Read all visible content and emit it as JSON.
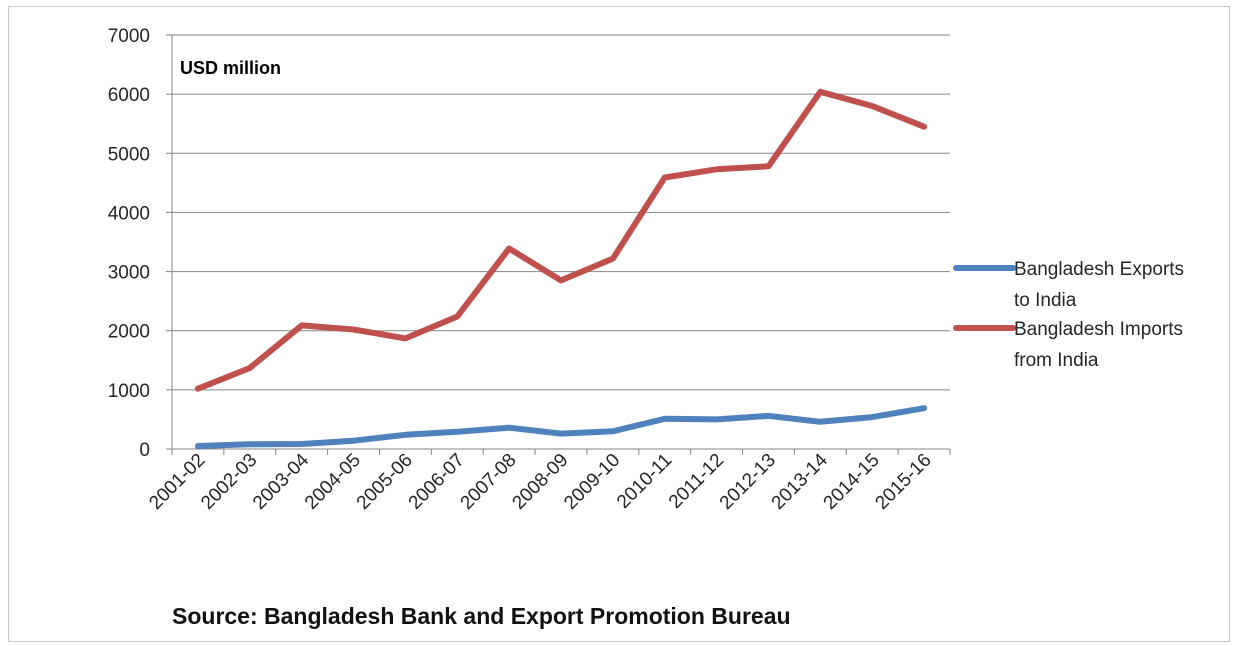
{
  "chart_data": {
    "type": "line",
    "title": "",
    "unit_label": "USD million",
    "categories": [
      "2001-02",
      "2002-03",
      "2003-04",
      "2004-05",
      "2005-06",
      "2006-07",
      "2007-08",
      "2008-09",
      "2009-10",
      "2010-11",
      "2011-12",
      "2012-13",
      "2013-14",
      "2014-15",
      "2015-16"
    ],
    "ylim": [
      0,
      7000
    ],
    "yticks": [
      0,
      1000,
      2000,
      3000,
      4000,
      5000,
      6000,
      7000
    ],
    "grid": true,
    "legend_position": "right",
    "series": [
      {
        "name_lines": [
          "Bangladesh Exports",
          "to India"
        ],
        "color": "#4f81bd",
        "values": [
          50,
          80,
          85,
          140,
          240,
          290,
          360,
          260,
          300,
          510,
          500,
          560,
          460,
          540,
          690
        ]
      },
      {
        "name_lines": [
          "Bangladesh Imports",
          "from India"
        ],
        "color": "#c0504d",
        "values": [
          1020,
          1370,
          2090,
          2020,
          1870,
          2240,
          3390,
          2850,
          3220,
          4590,
          4730,
          4780,
          6040,
          5800,
          5450
        ]
      }
    ]
  },
  "source_note": "Source: Bangladesh Bank and Export Promotion Bureau"
}
